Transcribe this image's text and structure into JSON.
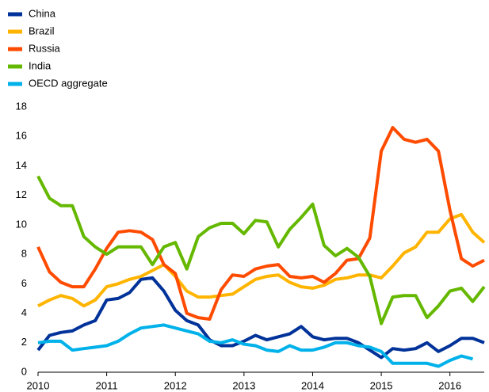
{
  "chart_data": {
    "type": "line",
    "x": [
      2010,
      2010.167,
      2010.333,
      2010.5,
      2010.667,
      2010.833,
      2011,
      2011.167,
      2011.333,
      2011.5,
      2011.667,
      2011.833,
      2012,
      2012.167,
      2012.333,
      2012.5,
      2012.667,
      2012.833,
      2013,
      2013.167,
      2013.333,
      2013.5,
      2013.667,
      2013.833,
      2014,
      2014.167,
      2014.333,
      2014.5,
      2014.667,
      2014.833,
      2015,
      2015.167,
      2015.333,
      2015.5,
      2015.667,
      2015.833,
      2016,
      2016.167,
      2016.333,
      2016.5
    ],
    "series": [
      {
        "name": "China",
        "color": "#003299",
        "values": [
          1.5,
          2.5,
          2.7,
          2.8,
          3.2,
          3.5,
          4.9,
          5.0,
          5.4,
          6.3,
          6.4,
          5.5,
          4.2,
          3.5,
          3.2,
          2.2,
          1.8,
          1.8,
          2.1,
          2.5,
          2.2,
          2.4,
          2.6,
          3.1,
          2.4,
          2.2,
          2.3,
          2.3,
          2.0,
          1.5,
          1.0,
          1.6,
          1.5,
          1.6,
          2.0,
          1.4,
          1.8,
          2.3,
          2.3,
          2.0
        ]
      },
      {
        "name": "Brazil",
        "color": "#ffb400",
        "values": [
          4.5,
          4.9,
          5.2,
          5.0,
          4.5,
          4.9,
          5.8,
          6.0,
          6.3,
          6.5,
          6.9,
          7.3,
          6.5,
          5.5,
          5.1,
          5.1,
          5.2,
          5.3,
          5.8,
          6.3,
          6.5,
          6.6,
          6.1,
          5.8,
          5.7,
          5.9,
          6.3,
          6.4,
          6.6,
          6.6,
          6.4,
          7.2,
          8.1,
          8.5,
          9.5,
          9.5,
          10.4,
          10.7,
          9.5,
          8.8
        ]
      },
      {
        "name": "Russia",
        "color": "#ff4b00",
        "values": [
          8.5,
          6.8,
          6.1,
          5.8,
          5.8,
          7.0,
          8.4,
          9.5,
          9.6,
          9.5,
          9.0,
          7.3,
          6.7,
          4.0,
          3.7,
          3.6,
          5.6,
          6.6,
          6.5,
          7.0,
          7.2,
          7.3,
          6.5,
          6.4,
          6.5,
          6.1,
          6.7,
          7.6,
          7.7,
          9.1,
          15.0,
          16.6,
          15.8,
          15.6,
          15.8,
          15.0,
          11.0,
          7.7,
          7.2,
          7.6
        ]
      },
      {
        "name": "India",
        "color": "#65b800",
        "values": [
          13.3,
          11.8,
          11.3,
          11.3,
          9.2,
          8.5,
          8.0,
          8.5,
          8.5,
          8.5,
          7.3,
          8.5,
          8.8,
          7.0,
          9.2,
          9.8,
          10.1,
          10.1,
          9.4,
          10.3,
          10.2,
          8.5,
          9.7,
          10.5,
          11.4,
          8.6,
          7.9,
          8.4,
          7.8,
          6.5,
          3.3,
          5.1,
          5.2,
          5.2,
          3.7,
          4.5,
          5.5,
          5.7,
          4.8,
          5.8
        ]
      },
      {
        "name": "OECD aggregate",
        "color": "#00b1ea",
        "values": [
          2.0,
          2.1,
          2.1,
          1.5,
          1.6,
          1.7,
          1.8,
          2.1,
          2.6,
          3.0,
          3.1,
          3.2,
          3.0,
          2.8,
          2.6,
          2.1,
          2.0,
          2.2,
          1.9,
          1.8,
          1.5,
          1.4,
          1.8,
          1.5,
          1.5,
          1.7,
          2.0,
          2.0,
          1.8,
          1.7,
          1.4,
          0.6,
          0.6,
          0.6,
          0.6,
          0.4,
          0.8,
          1.1,
          0.9,
          null
        ]
      }
    ],
    "xlim": [
      2010,
      2016.5
    ],
    "xticks": [
      2010,
      2011,
      2012,
      2013,
      2014,
      2015,
      2016
    ],
    "ylim": [
      0,
      18
    ],
    "yticks": [
      0,
      2,
      4,
      6,
      8,
      10,
      12,
      14,
      16,
      18
    ],
    "grid": false,
    "legend": "top-left"
  }
}
